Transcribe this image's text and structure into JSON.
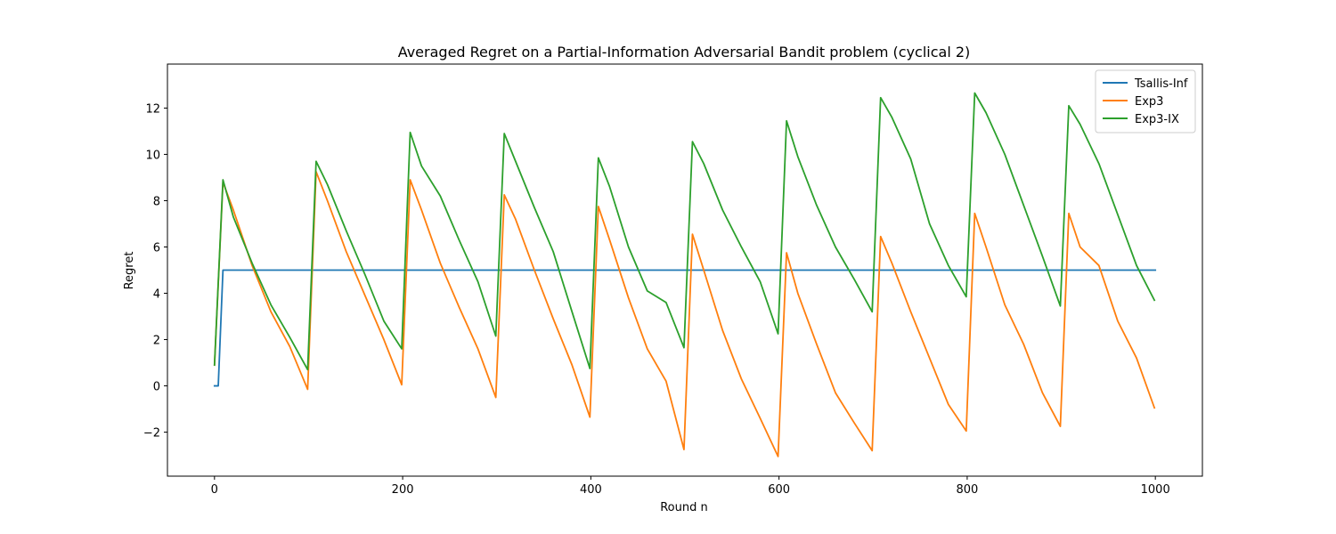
{
  "chart_data": {
    "type": "line",
    "title": "Averaged Regret on a Partial-Information Adversarial Bandit problem (cyclical 2)",
    "xlabel": "Round n",
    "ylabel": "Regret",
    "xlim": [
      -50,
      1050
    ],
    "ylim": [
      -3.9,
      13.9
    ],
    "xticks": [
      0,
      200,
      400,
      600,
      800,
      1000
    ],
    "yticks": [
      -2,
      0,
      2,
      4,
      6,
      8,
      10,
      12
    ],
    "xtick_labels": [
      "0",
      "200",
      "400",
      "600",
      "800",
      "1000"
    ],
    "ytick_labels": [
      "−2",
      "0",
      "2",
      "4",
      "6",
      "8",
      "10",
      "12"
    ],
    "grid": false,
    "legend": "upper-right",
    "series": [
      {
        "name": "Tsallis-Inf",
        "color": "#1f77b4",
        "x": [
          0,
          4,
          9,
          1000
        ],
        "y": [
          0.0,
          0.0,
          5.0,
          5.0
        ]
      },
      {
        "name": "Exp3",
        "color": "#ff7f0e",
        "x": [
          0,
          9,
          20,
          40,
          60,
          80,
          99,
          108,
          120,
          140,
          160,
          180,
          199,
          208,
          220,
          240,
          260,
          280,
          299,
          308,
          320,
          340,
          360,
          380,
          399,
          408,
          420,
          440,
          460,
          480,
          499,
          508,
          520,
          540,
          560,
          580,
          599,
          608,
          620,
          640,
          660,
          680,
          699,
          708,
          720,
          740,
          760,
          780,
          799,
          808,
          820,
          840,
          860,
          880,
          899,
          908,
          920,
          940,
          960,
          980,
          999
        ],
        "y": [
          0.9,
          8.8,
          7.6,
          5.2,
          3.2,
          1.7,
          -0.15,
          9.25,
          8.0,
          5.8,
          3.9,
          2.0,
          0.05,
          8.9,
          7.6,
          5.3,
          3.4,
          1.6,
          -0.5,
          8.25,
          7.2,
          5.0,
          2.9,
          0.9,
          -1.35,
          7.75,
          6.3,
          3.8,
          1.6,
          0.2,
          -2.75,
          6.55,
          5.0,
          2.4,
          0.3,
          -1.4,
          -3.05,
          5.75,
          4.0,
          1.8,
          -0.3,
          -1.6,
          -2.8,
          6.45,
          5.3,
          3.2,
          1.2,
          -0.8,
          -1.95,
          7.45,
          6.0,
          3.5,
          1.8,
          -0.3,
          -1.75,
          7.45,
          6.0,
          5.2,
          2.8,
          1.2,
          -0.95
        ]
      },
      {
        "name": "Exp3-IX",
        "color": "#2ca02c",
        "x": [
          0,
          9,
          20,
          40,
          60,
          80,
          99,
          108,
          120,
          140,
          160,
          180,
          199,
          208,
          220,
          240,
          260,
          280,
          299,
          308,
          320,
          340,
          360,
          380,
          399,
          408,
          420,
          440,
          460,
          480,
          499,
          508,
          520,
          540,
          560,
          580,
          599,
          608,
          620,
          640,
          660,
          680,
          699,
          708,
          720,
          740,
          760,
          780,
          799,
          808,
          820,
          840,
          860,
          880,
          899,
          908,
          920,
          940,
          960,
          980,
          999
        ],
        "y": [
          0.9,
          8.9,
          7.3,
          5.3,
          3.5,
          2.1,
          0.7,
          9.7,
          8.7,
          6.7,
          4.8,
          2.8,
          1.6,
          10.95,
          9.5,
          8.2,
          6.3,
          4.5,
          2.15,
          10.9,
          9.7,
          7.7,
          5.8,
          3.2,
          0.75,
          9.85,
          8.6,
          6.0,
          4.1,
          3.6,
          1.65,
          10.55,
          9.6,
          7.6,
          6.0,
          4.5,
          2.25,
          11.45,
          9.9,
          7.8,
          6.0,
          4.6,
          3.2,
          12.45,
          11.6,
          9.8,
          7.0,
          5.2,
          3.85,
          12.65,
          11.8,
          10.0,
          7.8,
          5.6,
          3.45,
          12.1,
          11.3,
          9.6,
          7.4,
          5.2,
          3.7
        ]
      }
    ]
  }
}
